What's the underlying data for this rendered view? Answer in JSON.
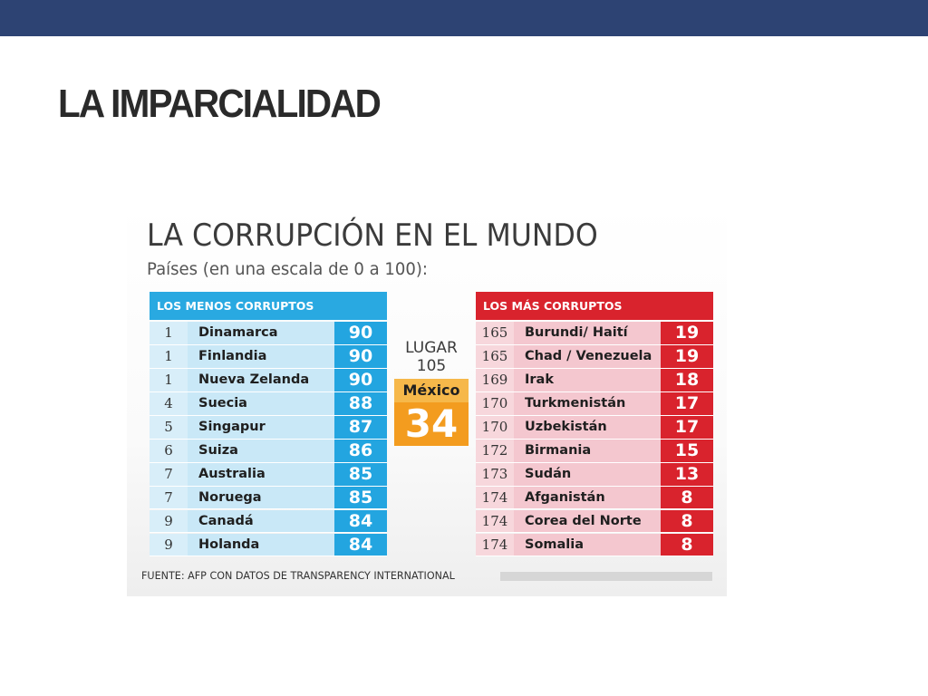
{
  "slide": {
    "title": "LA IMPARCIALIDAD"
  },
  "infographic": {
    "title": "LA CORRUPCIÓN EN EL MUNDO",
    "subtitle": "Países (en una escala de 0 a 100):",
    "least_corrupt": {
      "header": "LOS MENOS CORRUPTOS",
      "rows": [
        {
          "rank": "1",
          "country": "Dinamarca",
          "score": "90"
        },
        {
          "rank": "1",
          "country": "Finlandia",
          "score": "90"
        },
        {
          "rank": "1",
          "country": "Nueva Zelanda",
          "score": "90"
        },
        {
          "rank": "4",
          "country": "Suecia",
          "score": "88"
        },
        {
          "rank": "5",
          "country": "Singapur",
          "score": "87"
        },
        {
          "rank": "6",
          "country": "Suiza",
          "score": "86"
        },
        {
          "rank": "7",
          "country": "Australia",
          "score": "85"
        },
        {
          "rank": "7",
          "country": "Noruega",
          "score": "85"
        },
        {
          "rank": "9",
          "country": "Canadá",
          "score": "84"
        },
        {
          "rank": "9",
          "country": "Holanda",
          "score": "84"
        }
      ]
    },
    "most_corrupt": {
      "header": "LOS MÁS CORRUPTOS",
      "rows": [
        {
          "rank": "165",
          "country": "Burundi/ Haití",
          "score": "19"
        },
        {
          "rank": "165",
          "country": "Chad / Venezuela",
          "score": "19"
        },
        {
          "rank": "169",
          "country": "Irak",
          "score": "18"
        },
        {
          "rank": "170",
          "country": "Turkmenistán",
          "score": "17"
        },
        {
          "rank": "170",
          "country": "Uzbekistán",
          "score": "17"
        },
        {
          "rank": "172",
          "country": "Birmania",
          "score": "15"
        },
        {
          "rank": "173",
          "country": "Sudán",
          "score": "13"
        },
        {
          "rank": "174",
          "country": "Afganistán",
          "score": "8"
        },
        {
          "rank": "174",
          "country": "Corea del Norte",
          "score": "8"
        },
        {
          "rank": "174",
          "country": "Somalia",
          "score": "8"
        }
      ]
    },
    "mexico": {
      "lugar_label": "LUGAR",
      "rank": "105",
      "name": "México",
      "score": "34"
    },
    "source": "FUENTE: AFP CON DATOS DE TRANSPARENCY INTERNATIONAL"
  },
  "colors": {
    "top_bar": "#2d4373",
    "least_corrupt_accent": "#29a9e1",
    "most_corrupt_accent": "#d9232d",
    "mexico_accent": "#f39c1f"
  }
}
